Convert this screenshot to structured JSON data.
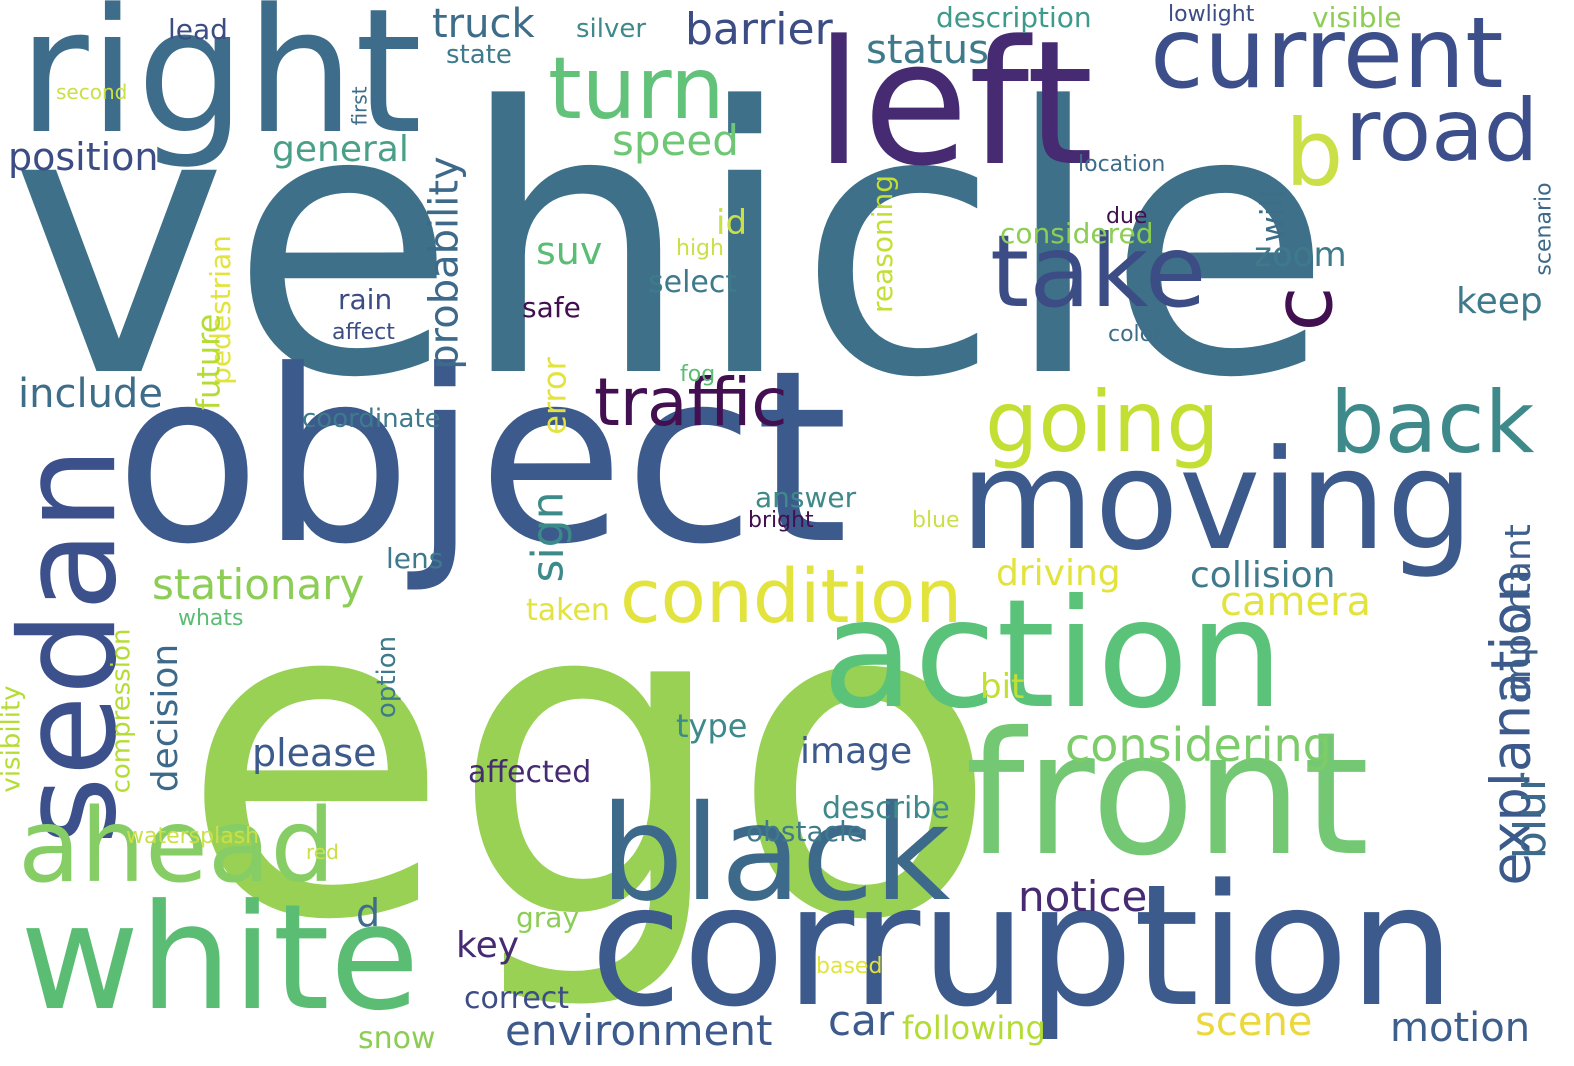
{
  "words": [
    {
      "text": "vehicle",
      "color": "#3e7189"
    },
    {
      "text": "ego",
      "color": "#99d155"
    },
    {
      "text": "object",
      "color": "#3c5a8c"
    },
    {
      "text": "left",
      "color": "#462b73"
    },
    {
      "text": "right",
      "color": "#3d6d8a"
    },
    {
      "text": "front",
      "color": "#74c874"
    },
    {
      "text": "corruption",
      "color": "#3c5a8c"
    },
    {
      "text": "action",
      "color": "#5bc27a"
    },
    {
      "text": "moving",
      "color": "#3c5a8c"
    },
    {
      "text": "sedan",
      "color": "#3c508c"
    },
    {
      "text": "white",
      "color": "#5bbd74"
    },
    {
      "text": "black",
      "color": "#3d6a8b"
    },
    {
      "text": "current",
      "color": "#3d4f8a"
    },
    {
      "text": "take",
      "color": "#3c4c84"
    },
    {
      "text": "ahead",
      "color": "#86cd65"
    },
    {
      "text": "turn",
      "color": "#63c27a"
    },
    {
      "text": "road",
      "color": "#3d4f8a"
    },
    {
      "text": "back",
      "color": "#3e8989"
    },
    {
      "text": "going",
      "color": "#c4df34"
    },
    {
      "text": "condition",
      "color": "#e2e33c"
    },
    {
      "text": "traffic",
      "color": "#420f50"
    },
    {
      "text": "b",
      "color": "#cbe047"
    },
    {
      "text": "c",
      "color": "#420f50"
    },
    {
      "text": "considering",
      "color": "#7ccc69"
    },
    {
      "text": "explanation",
      "color": "#3b5a8b"
    },
    {
      "text": "barrier",
      "color": "#3c4c84"
    },
    {
      "text": "truck",
      "color": "#3e6d8a"
    },
    {
      "text": "status",
      "color": "#3e7a8c"
    },
    {
      "text": "position",
      "color": "#3c4c84"
    },
    {
      "text": "speed",
      "color": "#6dc774"
    },
    {
      "text": "general",
      "color": "#4a9f89"
    },
    {
      "text": "stationary",
      "color": "#8ccd55"
    },
    {
      "text": "probability",
      "color": "#3d6a8b"
    },
    {
      "text": "sign",
      "color": "#3d8a8b"
    },
    {
      "text": "include",
      "color": "#3e6d8a"
    },
    {
      "text": "camera",
      "color": "#e2e33c"
    },
    {
      "text": "collision",
      "color": "#3e7a8c"
    },
    {
      "text": "environment",
      "color": "#3c5a8c"
    },
    {
      "text": "motion",
      "color": "#3d5f8c"
    },
    {
      "text": "scene",
      "color": "#ecd83a"
    },
    {
      "text": "car",
      "color": "#3c5a8c"
    },
    {
      "text": "notice",
      "color": "#462b73"
    },
    {
      "text": "image",
      "color": "#3c5a8c"
    },
    {
      "text": "blur",
      "color": "#3d6a8b"
    },
    {
      "text": "important",
      "color": "#3d5f8c"
    },
    {
      "text": "decision",
      "color": "#3d6a8b"
    },
    {
      "text": "please",
      "color": "#3c5a8c"
    },
    {
      "text": "driving",
      "color": "#e2e33c"
    },
    {
      "text": "key",
      "color": "#462b73"
    },
    {
      "text": "zoom",
      "color": "#3e7a8c"
    },
    {
      "text": "will",
      "color": "#3e6d8a"
    },
    {
      "text": "keep",
      "color": "#3e7a8c"
    },
    {
      "text": "suv",
      "color": "#5bbd74"
    },
    {
      "text": "select",
      "color": "#3e7a8c"
    },
    {
      "text": "considered",
      "color": "#8ccd55"
    },
    {
      "text": "error",
      "color": "#e2e33c"
    },
    {
      "text": "id",
      "color": "#cbe047"
    },
    {
      "text": "reasoning",
      "color": "#c4df34"
    },
    {
      "text": "pedestrian",
      "color": "#e2e33c"
    },
    {
      "text": "future",
      "color": "#b4dc34"
    },
    {
      "text": "coordinate",
      "color": "#3e7a8c"
    },
    {
      "text": "answer",
      "color": "#3e8989"
    },
    {
      "text": "lens",
      "color": "#3e7a8c"
    },
    {
      "text": "bit",
      "color": "#c4df34"
    },
    {
      "text": "affected",
      "color": "#462b73"
    },
    {
      "text": "type",
      "color": "#3e8989"
    },
    {
      "text": "describe",
      "color": "#3e8989"
    },
    {
      "text": "obstacle",
      "color": "#3e7a8c"
    },
    {
      "text": "d",
      "color": "#3e6d8a"
    },
    {
      "text": "correct",
      "color": "#3c4c84"
    },
    {
      "text": "following",
      "color": "#b4dc34"
    },
    {
      "text": "snow",
      "color": "#8ccd55"
    },
    {
      "text": "gray",
      "color": "#8ccd55"
    },
    {
      "text": "compression",
      "color": "#b4dc34"
    },
    {
      "text": "option",
      "color": "#3e7a8c"
    },
    {
      "text": "visibility",
      "color": "#b4dc34"
    },
    {
      "text": "rain",
      "color": "#3c4c84"
    },
    {
      "text": "safe",
      "color": "#420f50"
    },
    {
      "text": "lead",
      "color": "#3c4c84"
    },
    {
      "text": "silver",
      "color": "#3e8989"
    },
    {
      "text": "state",
      "color": "#3e7a8c"
    },
    {
      "text": "description",
      "color": "#3e9a8a"
    },
    {
      "text": "visible",
      "color": "#8ccd55"
    },
    {
      "text": "lowlight",
      "color": "#3c4c84"
    },
    {
      "text": "location",
      "color": "#3e6d8a"
    },
    {
      "text": "scenario",
      "color": "#3d6a8b"
    },
    {
      "text": "second",
      "color": "#cbe047"
    },
    {
      "text": "first",
      "color": "#3e6d8a"
    },
    {
      "text": "high",
      "color": "#cbe047"
    },
    {
      "text": "due",
      "color": "#420f50"
    },
    {
      "text": "affect",
      "color": "#3c4c84"
    },
    {
      "text": "color",
      "color": "#3e6d8a"
    },
    {
      "text": "fog",
      "color": "#5bbd74"
    },
    {
      "text": "bright",
      "color": "#420f50"
    },
    {
      "text": "blue",
      "color": "#cbe047"
    },
    {
      "text": "whats",
      "color": "#5bbd74"
    },
    {
      "text": "watersplash",
      "color": "#cbe047"
    },
    {
      "text": "red",
      "color": "#cbe047"
    },
    {
      "text": "taken",
      "color": "#e2e33c"
    },
    {
      "text": "based",
      "color": "#e2e33c"
    }
  ]
}
